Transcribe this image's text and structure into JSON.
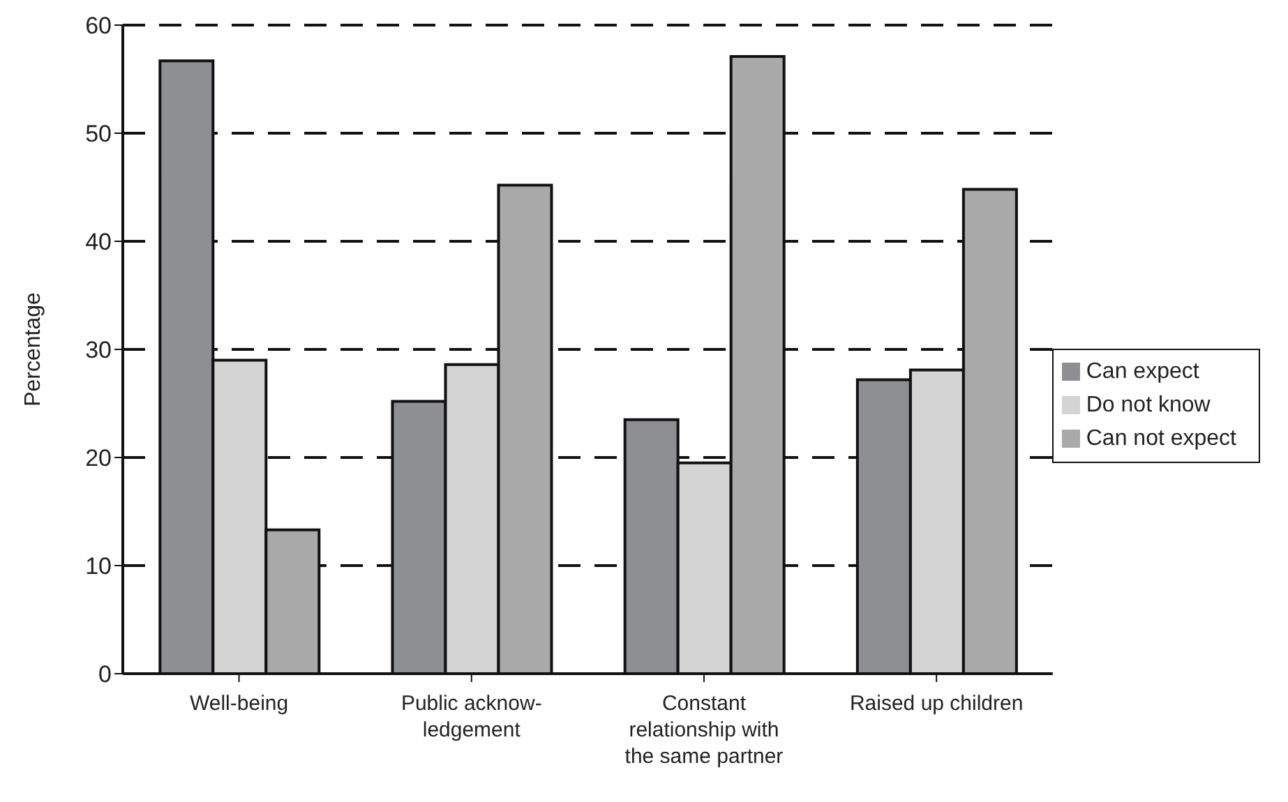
{
  "chart_data": {
    "type": "bar",
    "ylabel": "Percentage",
    "categories": [
      "Well-being",
      "Public acknow-ledgement",
      "Constant relationship with the same partner",
      "Raised up children"
    ],
    "series": [
      {
        "name": "Can expect",
        "color": "#8e8f93",
        "values": [
          56.7,
          25.2,
          23.5,
          27.2
        ]
      },
      {
        "name": "Do not know",
        "color": "#d4d4d4",
        "values": [
          29.0,
          28.6,
          19.5,
          28.1
        ]
      },
      {
        "name": "Can not expect",
        "color": "#a9a9a9",
        "values": [
          13.3,
          45.2,
          57.1,
          44.8
        ]
      }
    ],
    "ylim": [
      0,
      60
    ],
    "yticks": [
      0,
      10,
      20,
      30,
      40,
      50,
      60
    ],
    "grid": "y",
    "legend": "right"
  }
}
